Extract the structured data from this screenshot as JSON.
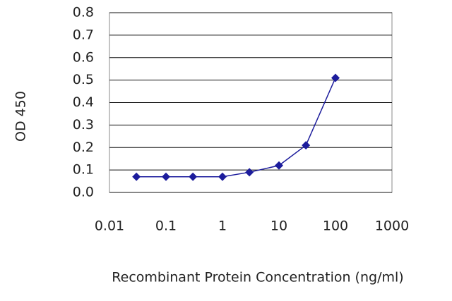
{
  "chart_data": {
    "type": "line",
    "x_label": "Recombinant Protein Concentration (ng/ml)",
    "y_label": "OD 450",
    "x": [
      0.03,
      0.1,
      0.3,
      1,
      3,
      10,
      30,
      100
    ],
    "series": [
      {
        "name": "OD 450",
        "color": "#1c1c9c",
        "values": [
          0.07,
          0.07,
          0.07,
          0.07,
          0.09,
          0.12,
          0.21,
          0.51
        ]
      }
    ],
    "xscale": "log",
    "xlim": [
      0.01,
      1000
    ],
    "xticks": [
      0.01,
      0.1,
      1,
      10,
      100,
      1000
    ],
    "ylim": [
      0,
      0.8
    ],
    "yticks": [
      {
        "value": 0,
        "label": "0.0"
      },
      0.1,
      0.2,
      0.3,
      0.4,
      0.5,
      0.6,
      0.7,
      0.8
    ],
    "grid": true
  }
}
